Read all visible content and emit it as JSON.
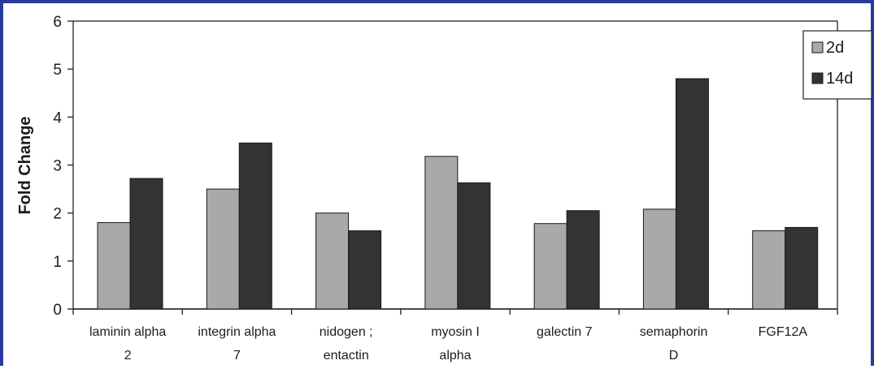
{
  "chart_data": {
    "type": "bar",
    "ylabel": "Fold Change",
    "ylim": [
      0,
      6
    ],
    "yticks": [
      "0",
      "1",
      "2",
      "3",
      "4",
      "5",
      "6"
    ],
    "categories": [
      [
        "laminin alpha",
        "2"
      ],
      [
        "integrin alpha",
        "7"
      ],
      [
        "nidogen ;",
        "entactin"
      ],
      [
        "myosin I",
        "alpha"
      ],
      [
        "galectin 7"
      ],
      [
        "semaphorin",
        "D"
      ],
      [
        "FGF12A"
      ]
    ],
    "series": [
      {
        "name": "2d",
        "color": "#a9a9a9",
        "values": [
          1.8,
          2.5,
          2.0,
          3.18,
          1.78,
          2.08,
          1.63
        ]
      },
      {
        "name": "14d",
        "color": "#333333",
        "values": [
          2.72,
          3.46,
          1.63,
          2.63,
          2.05,
          4.8,
          1.7
        ]
      }
    ],
    "grid": false,
    "legend_position": "top-right"
  }
}
